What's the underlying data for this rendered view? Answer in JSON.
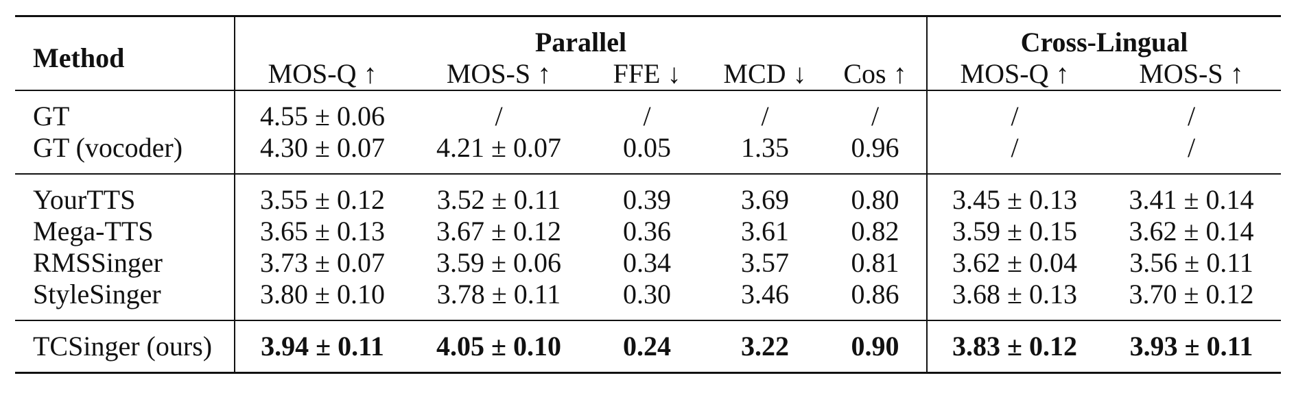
{
  "table": {
    "header": {
      "method": "Method",
      "groups": {
        "parallel": "Parallel",
        "cross_lingual": "Cross-Lingual"
      },
      "columns": [
        "MOS-Q ↑",
        "MOS-S ↑",
        "FFE ↓",
        "MCD ↓",
        "Cos ↑",
        "MOS-Q ↑",
        "MOS-S ↑"
      ]
    },
    "sections": [
      {
        "rows": [
          {
            "method": "GT",
            "cells": [
              "4.55 ± 0.06",
              "/",
              "/",
              "/",
              "/",
              "/",
              "/"
            ]
          },
          {
            "method": "GT (vocoder)",
            "cells": [
              "4.30 ± 0.07",
              "4.21 ± 0.07",
              "0.05",
              "1.35",
              "0.96",
              "/",
              "/"
            ]
          }
        ]
      },
      {
        "rows": [
          {
            "method": "YourTTS",
            "cells": [
              "3.55 ± 0.12",
              "3.52 ± 0.11",
              "0.39",
              "3.69",
              "0.80",
              "3.45 ± 0.13",
              "3.41 ± 0.14"
            ]
          },
          {
            "method": "Mega-TTS",
            "cells": [
              "3.65 ± 0.13",
              "3.67 ± 0.12",
              "0.36",
              "3.61",
              "0.82",
              "3.59 ± 0.15",
              "3.62 ± 0.14"
            ]
          },
          {
            "method": "RMSSinger",
            "cells": [
              "3.73 ± 0.07",
              "3.59 ± 0.06",
              "0.34",
              "3.57",
              "0.81",
              "3.62 ± 0.04",
              "3.56 ± 0.11"
            ]
          },
          {
            "method": "StyleSinger",
            "cells": [
              "3.80 ± 0.10",
              "3.78 ± 0.11",
              "0.30",
              "3.46",
              "0.86",
              "3.68 ± 0.13",
              "3.70 ± 0.12"
            ]
          }
        ]
      },
      {
        "rows": [
          {
            "method": "TCSinger (ours)",
            "bold": true,
            "cells": [
              "3.94 ± 0.11",
              "4.05 ± 0.10",
              "0.24",
              "3.22",
              "0.90",
              "3.83 ± 0.12",
              "3.93 ± 0.11"
            ]
          }
        ]
      }
    ]
  }
}
